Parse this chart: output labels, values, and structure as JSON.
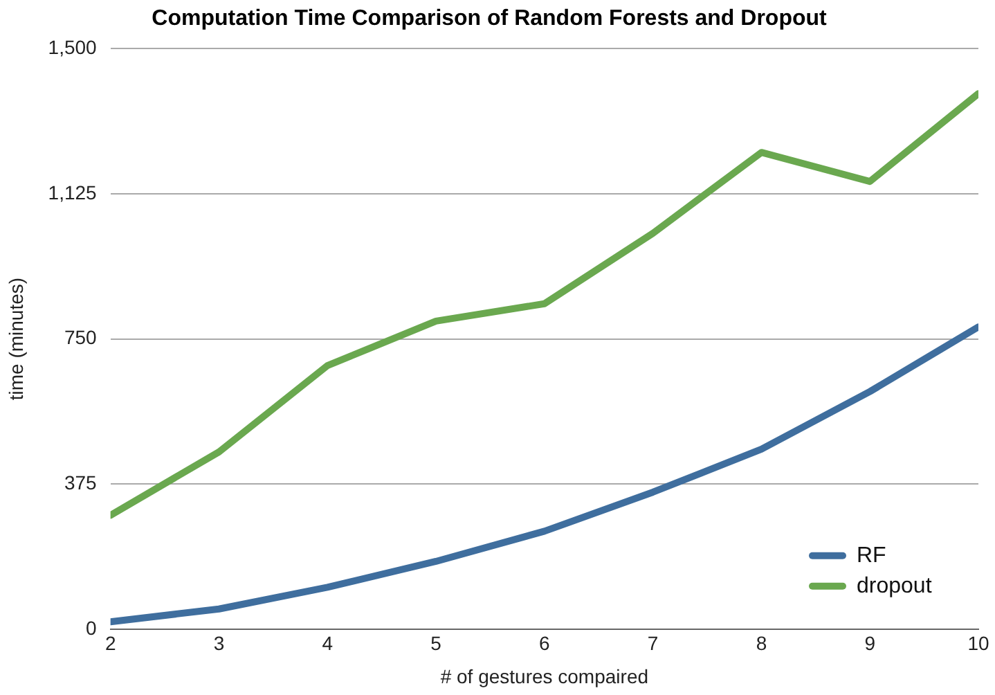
{
  "chart_data": {
    "type": "line",
    "title": "Computation Time Comparison of Random Forests and Dropout",
    "xlabel": "# of gestures compaired",
    "ylabel": "time (minutes)",
    "x": [
      2,
      3,
      4,
      5,
      6,
      7,
      8,
      9,
      10
    ],
    "xlim": [
      2,
      10
    ],
    "xticks": [
      2,
      3,
      4,
      5,
      6,
      7,
      8,
      9,
      10
    ],
    "ylim": [
      0,
      1500
    ],
    "yticks": [
      0,
      375,
      750,
      {
        "value": 1125,
        "label": "1,125"
      },
      {
        "value": 1500,
        "label": "1,500"
      }
    ],
    "series": [
      {
        "name": "RF",
        "color": "#3f6e9e",
        "values": [
          19,
          52,
          108,
          175,
          253,
          354,
          465,
          614,
          781
        ]
      },
      {
        "name": "dropout",
        "color": "#6aa84f",
        "values": [
          294,
          458,
          681,
          796,
          841,
          1023,
          1232,
          1157,
          1384
        ]
      }
    ],
    "grid": "y",
    "legend": "bottom right",
    "marker": "none",
    "line_style": "solid"
  }
}
